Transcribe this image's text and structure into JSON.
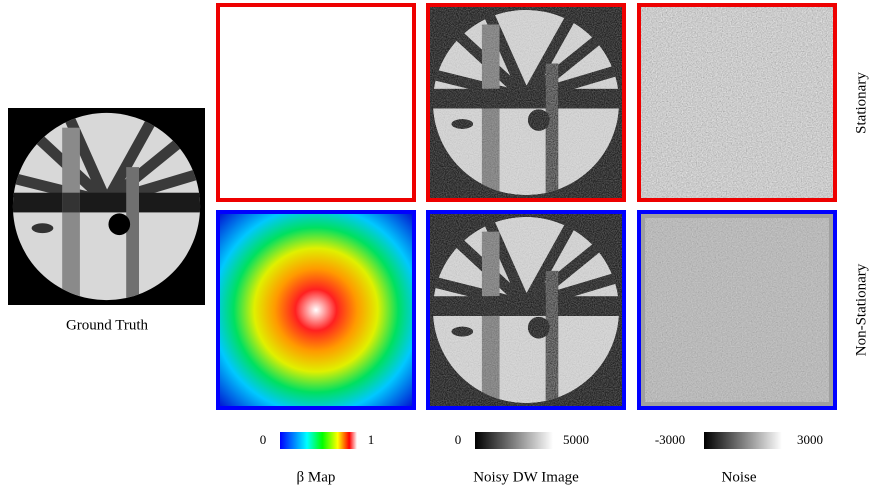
{
  "ground_truth": {
    "label": "Ground Truth"
  },
  "rows": [
    "Stationary",
    "Non-Stationary"
  ],
  "columns": [
    {
      "caption": "β Map",
      "colorbar": {
        "min_label": "0",
        "max_label": "1"
      }
    },
    {
      "caption": "Noisy DW Image",
      "colorbar": {
        "min_label": "0",
        "max_label": "5000"
      }
    },
    {
      "caption": "Noise",
      "colorbar": {
        "min_label": "-3000",
        "max_label": "3000"
      }
    }
  ]
}
